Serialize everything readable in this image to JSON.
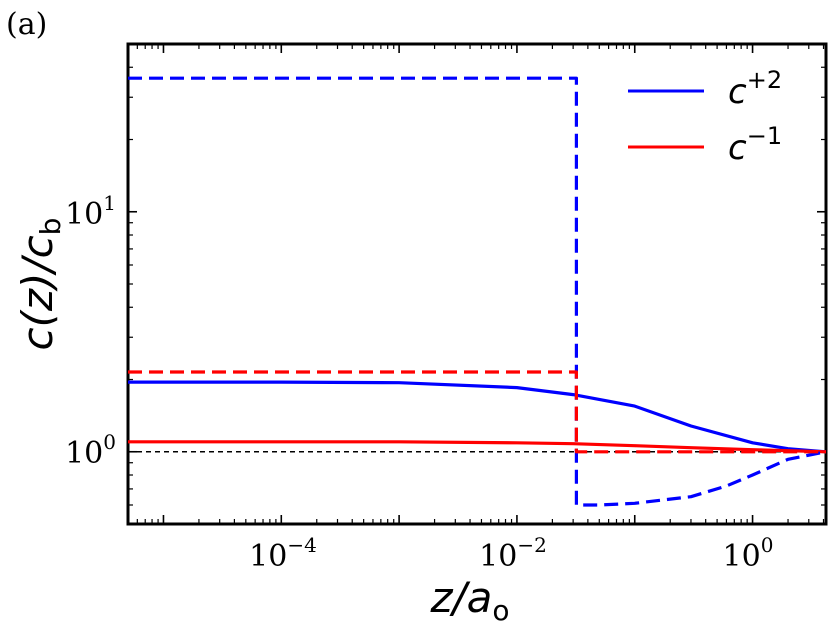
{
  "panel_label": "(a)",
  "chart_data": {
    "type": "line",
    "xscale": "log",
    "yscale": "log",
    "xlim": [
      5e-06,
      4.2
    ],
    "ylim": [
      0.5,
      50
    ],
    "xlabel": "z/a",
    "xlabel_sub": "o",
    "ylabel": "c(z)/c",
    "ylabel_sub": "b",
    "xticks": [
      {
        "value": 0.0001,
        "base": "10",
        "exp": "−4"
      },
      {
        "value": 0.01,
        "base": "10",
        "exp": "−2"
      },
      {
        "value": 1,
        "base": "10",
        "exp": "0"
      }
    ],
    "yticks": [
      {
        "value": 1,
        "base": "10",
        "exp": "0"
      },
      {
        "value": 10,
        "base": "10",
        "exp": "1"
      }
    ],
    "grid": false,
    "legend_position": "top-right",
    "reference_line": {
      "y": 1,
      "color": "#000000",
      "style": "dashed"
    },
    "series": [
      {
        "name": "c",
        "sup": "+2",
        "color": "#0000ff",
        "style": "solid",
        "legend": true,
        "x": [
          5e-06,
          0.0001,
          0.001,
          0.01,
          0.03,
          0.1,
          0.3,
          1,
          2,
          4.2
        ],
        "y": [
          1.95,
          1.95,
          1.94,
          1.85,
          1.73,
          1.55,
          1.28,
          1.09,
          1.03,
          1.0
        ]
      },
      {
        "name": "c",
        "sup": "−1",
        "color": "#ff0000",
        "style": "solid",
        "legend": true,
        "x": [
          5e-06,
          0.0001,
          0.001,
          0.01,
          0.03,
          0.1,
          0.3,
          1,
          2,
          4.2
        ],
        "y": [
          1.1,
          1.1,
          1.1,
          1.09,
          1.08,
          1.06,
          1.04,
          1.02,
          1.01,
          1.0
        ]
      },
      {
        "name": "",
        "color": "#0000ff",
        "style": "dashed",
        "legend": false,
        "x": [
          5e-06,
          0.032,
          0.032,
          0.032,
          0.05,
          0.1,
          0.3,
          0.6,
          1,
          2,
          4.2
        ],
        "y": [
          36,
          36,
          1.0,
          0.6,
          0.6,
          0.61,
          0.65,
          0.72,
          0.8,
          0.93,
          1.0
        ]
      },
      {
        "name": "",
        "color": "#ff0000",
        "style": "dashed",
        "legend": false,
        "x": [
          5e-06,
          0.032,
          0.032,
          0.05,
          0.3,
          1,
          4.2
        ],
        "y": [
          2.15,
          2.15,
          1.0,
          1.0,
          1.0,
          1.0,
          1.0
        ]
      }
    ]
  }
}
